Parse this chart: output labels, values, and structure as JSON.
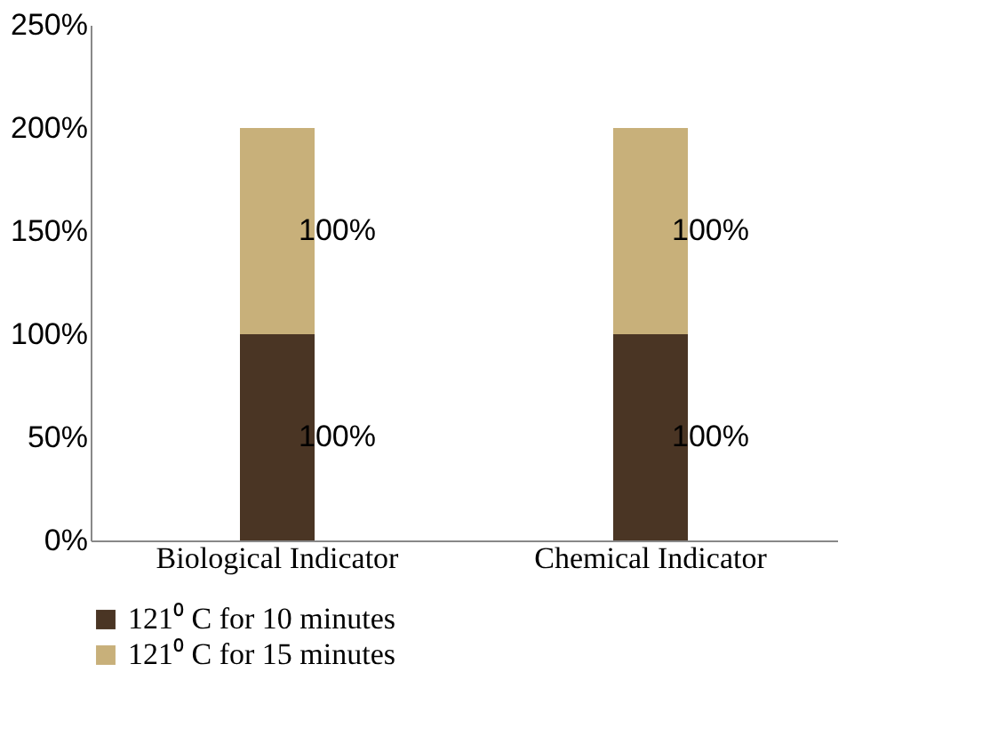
{
  "chart_data": {
    "type": "bar",
    "stacked": true,
    "categories": [
      "Biological Indicator",
      "Chemical Indicator"
    ],
    "series": [
      {
        "name": "121⁰ C for 10 minutes",
        "color": "#4a3524",
        "values": [
          100,
          100
        ],
        "value_labels": [
          "100%",
          "100%"
        ]
      },
      {
        "name": "121⁰ C for 15 minutes",
        "color": "#c8b07a",
        "values": [
          100,
          100
        ],
        "value_labels": [
          "100%",
          "100%"
        ]
      }
    ],
    "ylim": [
      0,
      250
    ],
    "yticks": [
      {
        "value": 0,
        "label": "0%"
      },
      {
        "value": 50,
        "label": "50%"
      },
      {
        "value": 100,
        "label": "100%"
      },
      {
        "value": 150,
        "label": "150%"
      },
      {
        "value": 200,
        "label": "200%"
      },
      {
        "value": 250,
        "label": "250%"
      }
    ],
    "grid": false,
    "legend": "bottom"
  }
}
